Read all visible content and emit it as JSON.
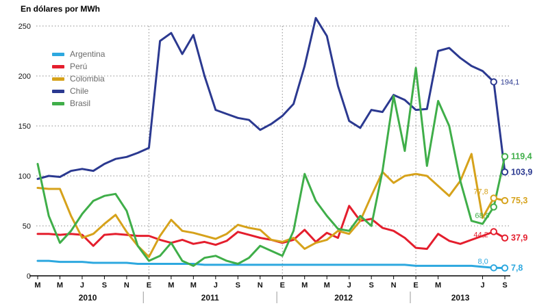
{
  "title": "En dólares por MWh",
  "legend": [
    {
      "id": "argentina",
      "label": "Argentina",
      "color": "#2da8df"
    },
    {
      "id": "peru",
      "label": "Perú",
      "color": "#e41e2d"
    },
    {
      "id": "colombia",
      "label": "Colombia",
      "color": "#d6a21b"
    },
    {
      "id": "chile",
      "label": "Chile",
      "color": "#2b3990"
    },
    {
      "id": "brasil",
      "label": "Brasil",
      "color": "#3fae49"
    }
  ],
  "chart_data": {
    "type": "line",
    "title": "En dólares por MWh",
    "ylim": [
      0,
      250
    ],
    "yticks": [
      0,
      50,
      100,
      150,
      200,
      250
    ],
    "grid": "dotted horizontal at each ytick, dotted vertical at January (E) ticks",
    "legend_position": "upper-left inside plot",
    "n_points": 43,
    "x_tick_labels": [
      {
        "i": 0,
        "l": "M"
      },
      {
        "i": 2,
        "l": "M"
      },
      {
        "i": 4,
        "l": "J"
      },
      {
        "i": 6,
        "l": "S"
      },
      {
        "i": 8,
        "l": "N"
      },
      {
        "i": 10,
        "l": "E"
      },
      {
        "i": 12,
        "l": "M"
      },
      {
        "i": 14,
        "l": "M"
      },
      {
        "i": 16,
        "l": "J"
      },
      {
        "i": 18,
        "l": "S"
      },
      {
        "i": 20,
        "l": "N"
      },
      {
        "i": 22,
        "l": "E"
      },
      {
        "i": 24,
        "l": "M"
      },
      {
        "i": 26,
        "l": "M"
      },
      {
        "i": 28,
        "l": "J"
      },
      {
        "i": 30,
        "l": "S"
      },
      {
        "i": 32,
        "l": "N"
      },
      {
        "i": 34,
        "l": "E"
      },
      {
        "i": 36,
        "l": "M"
      },
      {
        "i": 40,
        "l": "J"
      },
      {
        "i": 42,
        "l": "S"
      }
    ],
    "year_labels": [
      {
        "label": "2010",
        "from": 0,
        "to": 9
      },
      {
        "label": "2011",
        "from": 10,
        "to": 21
      },
      {
        "label": "2012",
        "from": 22,
        "to": 33
      },
      {
        "label": "2013",
        "from": 34,
        "to": 42
      }
    ],
    "series": [
      {
        "id": "argentina",
        "name": "Argentina",
        "color": "#2da8df",
        "values": [
          15,
          15,
          14,
          14,
          14,
          13,
          13,
          13,
          13,
          12,
          12,
          12,
          12,
          12,
          12,
          11,
          11,
          11,
          11,
          11,
          11,
          11,
          11,
          11,
          11,
          11,
          11,
          11,
          11,
          11,
          11,
          11,
          11,
          11,
          10,
          10,
          10,
          10,
          10,
          10,
          9,
          8,
          7.8
        ],
        "prev_label": "8,0",
        "final_label": "7,8"
      },
      {
        "id": "peru",
        "name": "Perú",
        "color": "#e41e2d",
        "values": [
          42,
          42,
          41,
          42,
          41,
          30,
          41,
          42,
          41,
          40,
          40,
          36,
          33,
          36,
          32,
          34,
          31,
          35,
          44,
          41,
          38,
          36,
          33,
          36,
          46,
          34,
          43,
          38,
          70,
          55,
          57,
          48,
          45,
          38,
          28,
          27,
          42,
          35,
          32,
          36,
          40,
          44.2,
          37.9
        ],
        "prev_label": "44,2",
        "final_label": "37,9"
      },
      {
        "id": "colombia",
        "name": "Colombia",
        "color": "#d6a21b",
        "values": [
          88,
          87,
          87,
          60,
          38,
          42,
          52,
          61,
          44,
          30,
          19,
          40,
          56,
          45,
          43,
          40,
          37,
          42,
          51,
          48,
          46,
          36,
          34,
          38,
          27,
          33,
          36,
          45,
          42,
          55,
          80,
          104,
          93,
          100,
          102,
          100,
          90,
          80,
          95,
          122,
          58,
          77.8,
          75.3
        ],
        "prev_label": "77,8",
        "final_label": "75,3"
      },
      {
        "id": "chile",
        "name": "Chile",
        "color": "#2b3990",
        "values": [
          97,
          100,
          99,
          105,
          107,
          105,
          112,
          117,
          119,
          123,
          128,
          235,
          243,
          222,
          241,
          200,
          166,
          162,
          158,
          156,
          146,
          152,
          160,
          172,
          210,
          258,
          240,
          190,
          155,
          148,
          166,
          164,
          181,
          176,
          166,
          167,
          225,
          228,
          218,
          210,
          205,
          194.1,
          103.9
        ],
        "prev_label": "194,1",
        "final_label": "103,9"
      },
      {
        "id": "brasil",
        "name": "Brasil",
        "color": "#3fae49",
        "values": [
          112,
          60,
          33,
          45,
          62,
          75,
          80,
          82,
          65,
          30,
          15,
          20,
          33,
          15,
          10,
          18,
          20,
          15,
          12,
          18,
          30,
          25,
          20,
          45,
          102,
          75,
          60,
          47,
          45,
          60,
          50,
          105,
          180,
          125,
          208,
          110,
          175,
          150,
          95,
          55,
          52,
          68.9,
          119.4
        ],
        "prev_label": "68,9",
        "final_label": "119,4"
      }
    ]
  }
}
